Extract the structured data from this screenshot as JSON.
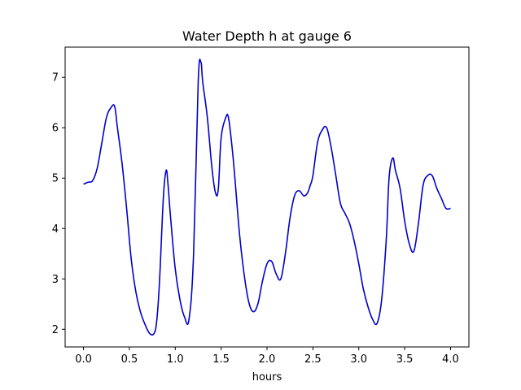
{
  "chart_data": {
    "type": "line",
    "title": "Water Depth h at gauge 6",
    "xlabel": "hours",
    "ylabel": "",
    "xlim": [
      -0.2,
      4.2
    ],
    "ylim": [
      1.65,
      7.6
    ],
    "xticks": [
      0.0,
      0.5,
      1.0,
      1.5,
      2.0,
      2.5,
      3.0,
      3.5,
      4.0
    ],
    "xtick_labels": [
      "0.0",
      "0.5",
      "1.0",
      "1.5",
      "2.0",
      "2.5",
      "3.0",
      "3.5",
      "4.0"
    ],
    "yticks": [
      2,
      3,
      4,
      5,
      6,
      7
    ],
    "ytick_labels": [
      "2",
      "3",
      "4",
      "5",
      "6",
      "7"
    ],
    "grid": false,
    "legend": "none",
    "series": [
      {
        "color": "#0000cc",
        "x": [
          0.0,
          0.05,
          0.1,
          0.15,
          0.2,
          0.25,
          0.3,
          0.34,
          0.37,
          0.42,
          0.47,
          0.52,
          0.57,
          0.62,
          0.67,
          0.72,
          0.77,
          0.8,
          0.83,
          0.87,
          0.9,
          0.92,
          0.95,
          1.0,
          1.05,
          1.1,
          1.15,
          1.2,
          1.25,
          1.28,
          1.3,
          1.35,
          1.4,
          1.44,
          1.47,
          1.5,
          1.55,
          1.58,
          1.62,
          1.65,
          1.7,
          1.75,
          1.8,
          1.85,
          1.9,
          1.95,
          2.0,
          2.05,
          2.1,
          2.15,
          2.2,
          2.25,
          2.3,
          2.35,
          2.4,
          2.44,
          2.47,
          2.5,
          2.55,
          2.6,
          2.65,
          2.7,
          2.75,
          2.8,
          2.85,
          2.9,
          2.95,
          3.0,
          3.05,
          3.1,
          3.15,
          3.2,
          3.25,
          3.3,
          3.33,
          3.37,
          3.4,
          3.45,
          3.5,
          3.55,
          3.6,
          3.65,
          3.7,
          3.75,
          3.8,
          3.85,
          3.9,
          3.95,
          4.0
        ],
        "y": [
          4.88,
          4.92,
          4.95,
          5.2,
          5.7,
          6.2,
          6.4,
          6.42,
          6.0,
          5.3,
          4.4,
          3.4,
          2.75,
          2.35,
          2.1,
          1.92,
          1.92,
          2.2,
          3.0,
          4.6,
          5.15,
          4.9,
          4.2,
          3.2,
          2.6,
          2.25,
          2.2,
          3.5,
          6.9,
          7.3,
          6.9,
          6.2,
          5.2,
          4.7,
          4.8,
          5.8,
          6.2,
          6.2,
          5.6,
          5.0,
          3.9,
          3.1,
          2.55,
          2.35,
          2.5,
          2.95,
          3.3,
          3.35,
          3.1,
          3.0,
          3.5,
          4.2,
          4.65,
          4.75,
          4.65,
          4.7,
          4.85,
          5.05,
          5.7,
          5.95,
          6.0,
          5.6,
          5.05,
          4.5,
          4.3,
          4.1,
          3.75,
          3.3,
          2.8,
          2.45,
          2.2,
          2.12,
          2.6,
          3.8,
          5.0,
          5.4,
          5.15,
          4.8,
          4.15,
          3.7,
          3.55,
          4.1,
          4.85,
          5.05,
          5.05,
          4.8,
          4.6,
          4.4,
          4.4
        ]
      }
    ]
  }
}
